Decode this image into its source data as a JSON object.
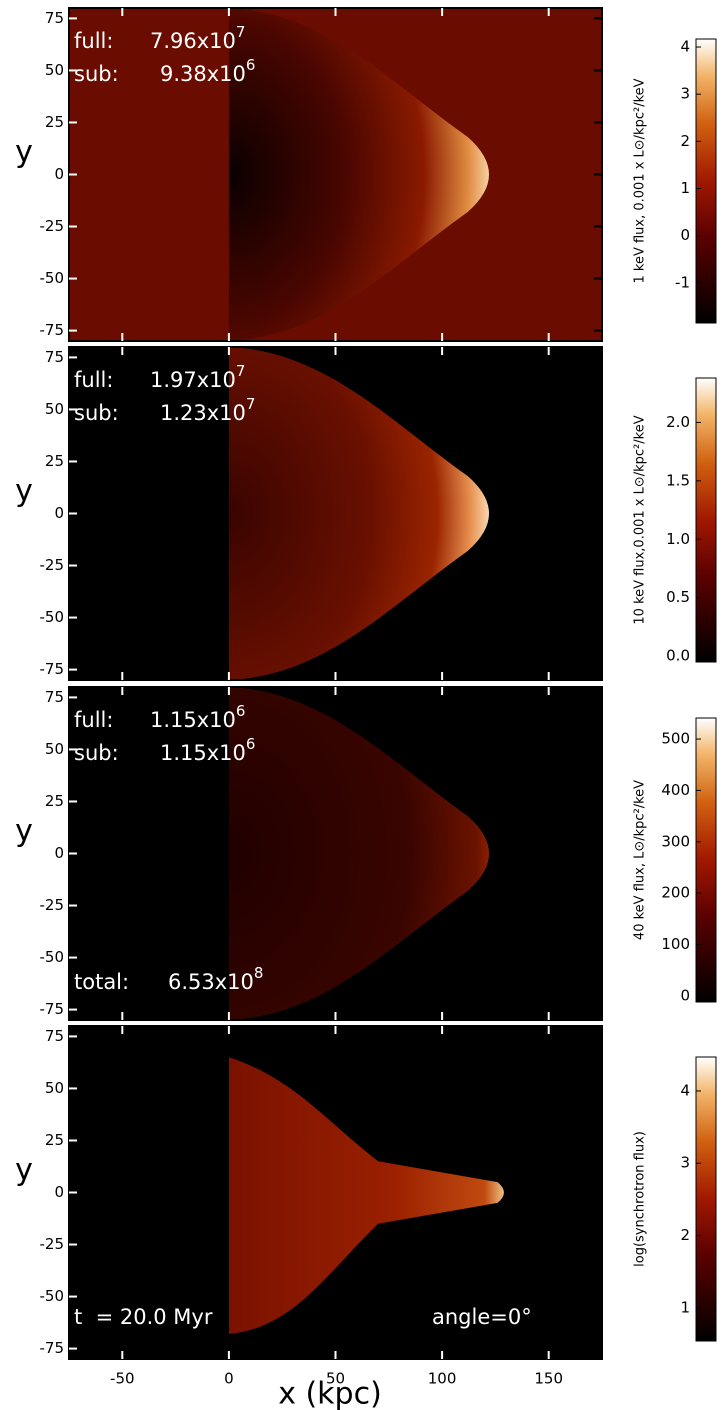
{
  "chart_data": [
    {
      "type": "heatmap",
      "xlim": [
        -75,
        175
      ],
      "ylim": [
        -80,
        80
      ],
      "xticks": [
        -50,
        0,
        50,
        100,
        150
      ],
      "yticks": [
        75,
        50,
        25,
        0,
        -25,
        -50,
        -75
      ],
      "ylabel": "y",
      "annotations": [
        {
          "text": "full:"
        },
        {
          "text": "7.96x10",
          "exponent": "7"
        },
        {
          "text": "sub:"
        },
        {
          "text": "9.38x10",
          "exponent": "6"
        }
      ],
      "colorbar": {
        "label": "1 keV flux, 0.001 x L⊙/kpc²/keV",
        "zlim": [
          -1.85,
          4.17
        ],
        "zticks": [
          -1,
          0,
          1,
          2,
          3,
          4
        ]
      }
    },
    {
      "type": "heatmap",
      "xlim": [
        -75,
        175
      ],
      "ylim": [
        -80,
        80
      ],
      "xticks": [
        -50,
        0,
        50,
        100,
        150
      ],
      "yticks": [
        75,
        50,
        25,
        0,
        -25,
        -50,
        -75
      ],
      "ylabel": "y",
      "annotations": [
        {
          "text": "full:"
        },
        {
          "text": "1.97x10",
          "exponent": "7"
        },
        {
          "text": "sub:"
        },
        {
          "text": "1.23x10",
          "exponent": "7"
        }
      ],
      "colorbar": {
        "label": "10 keV flux,0.001 x L⊙/kpc²/keV",
        "zlim": [
          -0.05,
          2.38
        ],
        "zticks": [
          {
            "value": 0,
            "label": "0.0"
          },
          0.5,
          {
            "value": 1,
            "label": "1.0"
          },
          1.5,
          {
            "value": 2,
            "label": "2.0"
          }
        ]
      }
    },
    {
      "type": "heatmap",
      "xlim": [
        -75,
        175
      ],
      "ylim": [
        -80,
        80
      ],
      "xticks": [
        -50,
        0,
        50,
        100,
        150
      ],
      "yticks": [
        75,
        50,
        25,
        0,
        -25,
        -50,
        -75
      ],
      "ylabel": "y",
      "annotations": [
        {
          "text": "full:"
        },
        {
          "text": "1.15x10",
          "exponent": "6"
        },
        {
          "text": "sub:"
        },
        {
          "text": "1.15x10",
          "exponent": "6"
        },
        {
          "text": "total:"
        },
        {
          "text": "6.53x10",
          "exponent": "8"
        }
      ],
      "colorbar": {
        "label": "40 keV flux, L⊙/kpc²/keV",
        "zlim": [
          -12,
          541
        ],
        "zticks": [
          0,
          100,
          200,
          300,
          400,
          500
        ]
      }
    },
    {
      "type": "heatmap",
      "xlim": [
        -75,
        175
      ],
      "ylim": [
        -80,
        80
      ],
      "xticks": [
        -50,
        0,
        50,
        100,
        150
      ],
      "yticks": [
        75,
        50,
        25,
        0,
        -25,
        -50,
        -75
      ],
      "ylabel": "y",
      "xlabel": "x (kpc)",
      "annotations": [
        {
          "text": "t  = 20.0 Myr"
        },
        {
          "text": "angle=0°"
        }
      ],
      "colorbar": {
        "label": "log(synchrotron flux)",
        "zlim": [
          0.54,
          4.47
        ],
        "zticks": [
          1,
          2,
          3,
          4
        ]
      }
    }
  ]
}
